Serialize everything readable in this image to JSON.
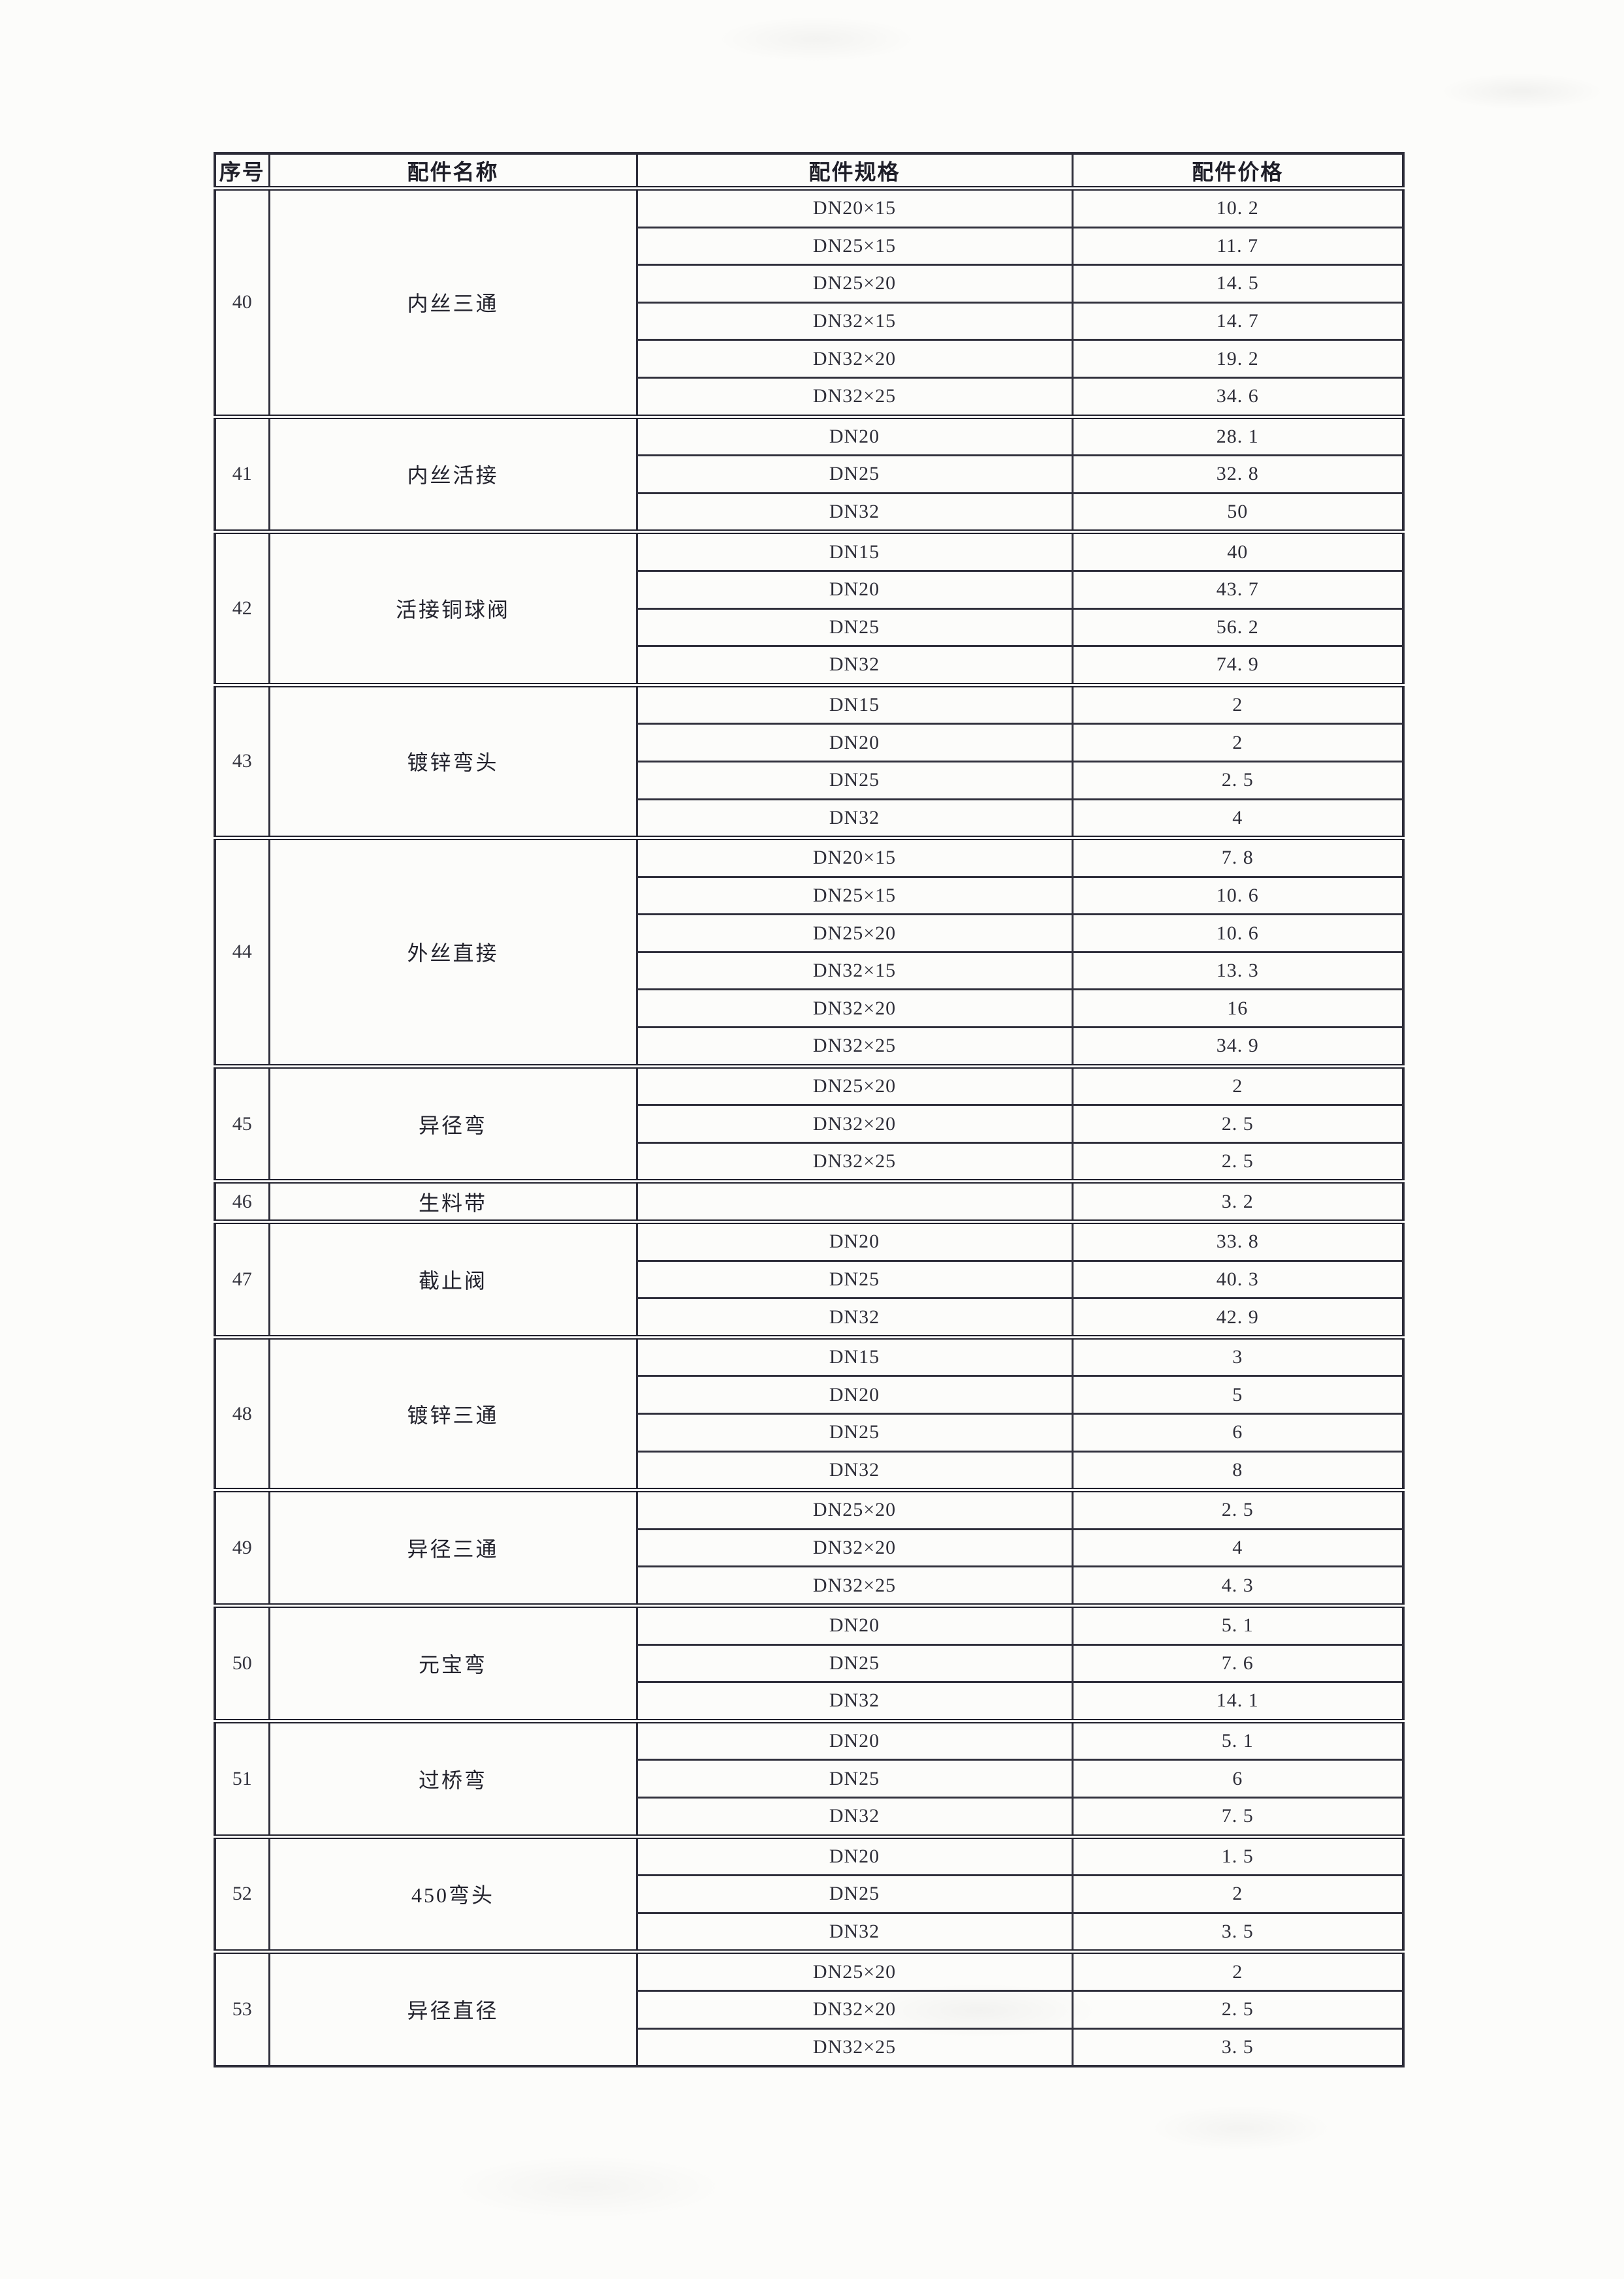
{
  "table": {
    "headers": [
      "序号",
      "配件名称",
      "配件规格",
      "配件价格"
    ],
    "groups": [
      {
        "no": "40",
        "name": "内丝三通",
        "rows": [
          [
            "DN20×15",
            "10. 2"
          ],
          [
            "DN25×15",
            "11. 7"
          ],
          [
            "DN25×20",
            "14. 5"
          ],
          [
            "DN32×15",
            "14. 7"
          ],
          [
            "DN32×20",
            "19. 2"
          ],
          [
            "DN32×25",
            "34. 6"
          ]
        ]
      },
      {
        "no": "41",
        "name": "内丝活接",
        "rows": [
          [
            "DN20",
            "28. 1"
          ],
          [
            "DN25",
            "32. 8"
          ],
          [
            "DN32",
            "50"
          ]
        ]
      },
      {
        "no": "42",
        "name": "活接铜球阀",
        "rows": [
          [
            "DN15",
            "40"
          ],
          [
            "DN20",
            "43. 7"
          ],
          [
            "DN25",
            "56. 2"
          ],
          [
            "DN32",
            "74. 9"
          ]
        ]
      },
      {
        "no": "43",
        "name": "镀锌弯头",
        "rows": [
          [
            "DN15",
            "2"
          ],
          [
            "DN20",
            "2"
          ],
          [
            "DN25",
            "2. 5"
          ],
          [
            "DN32",
            "4"
          ]
        ]
      },
      {
        "no": "44",
        "name": "外丝直接",
        "rows": [
          [
            "DN20×15",
            "7. 8"
          ],
          [
            "DN25×15",
            "10. 6"
          ],
          [
            "DN25×20",
            "10. 6"
          ],
          [
            "DN32×15",
            "13. 3"
          ],
          [
            "DN32×20",
            "16"
          ],
          [
            "DN32×25",
            "34. 9"
          ]
        ]
      },
      {
        "no": "45",
        "name": "异径弯",
        "rows": [
          [
            "DN25×20",
            "2"
          ],
          [
            "DN32×20",
            "2. 5"
          ],
          [
            "DN32×25",
            "2. 5"
          ]
        ]
      },
      {
        "no": "46",
        "name": "生料带",
        "rows": [
          [
            "",
            "3. 2"
          ]
        ]
      },
      {
        "no": "47",
        "name": "截止阀",
        "rows": [
          [
            "DN20",
            "33. 8"
          ],
          [
            "DN25",
            "40. 3"
          ],
          [
            "DN32",
            "42. 9"
          ]
        ]
      },
      {
        "no": "48",
        "name": "镀锌三通",
        "rows": [
          [
            "DN15",
            "3"
          ],
          [
            "DN20",
            "5"
          ],
          [
            "DN25",
            "6"
          ],
          [
            "DN32",
            "8"
          ]
        ]
      },
      {
        "no": "49",
        "name": "异径三通",
        "rows": [
          [
            "DN25×20",
            "2. 5"
          ],
          [
            "DN32×20",
            "4"
          ],
          [
            "DN32×25",
            "4. 3"
          ]
        ]
      },
      {
        "no": "50",
        "name": "元宝弯",
        "rows": [
          [
            "DN20",
            "5. 1"
          ],
          [
            "DN25",
            "7. 6"
          ],
          [
            "DN32",
            "14. 1"
          ]
        ]
      },
      {
        "no": "51",
        "name": "过桥弯",
        "rows": [
          [
            "DN20",
            "5. 1"
          ],
          [
            "DN25",
            "6"
          ],
          [
            "DN32",
            "7. 5"
          ]
        ]
      },
      {
        "no": "52",
        "name": "450弯头",
        "rows": [
          [
            "DN20",
            "1. 5"
          ],
          [
            "DN25",
            "2"
          ],
          [
            "DN32",
            "3. 5"
          ]
        ]
      },
      {
        "no": "53",
        "name": "异径直径",
        "rows": [
          [
            "DN25×20",
            "2"
          ],
          [
            "DN32×20",
            "2. 5"
          ],
          [
            "DN32×25",
            "3. 5"
          ]
        ]
      }
    ]
  }
}
